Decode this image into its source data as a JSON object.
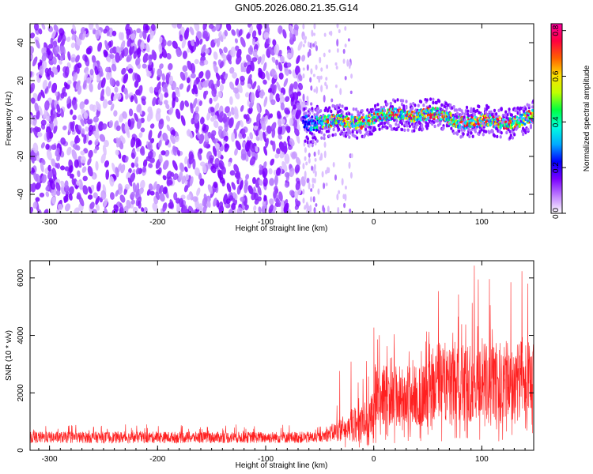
{
  "title": "GN05.2026.080.21.35.G14",
  "chart_data": [
    {
      "type": "heatmap",
      "title": "GN05.2026.080.21.35.G14",
      "xlabel": "Height of straight line (km)",
      "ylabel": "Frequency (Hz)",
      "xlim": [
        -318,
        148
      ],
      "ylim": [
        -50,
        50
      ],
      "xticks": [
        -300,
        -200,
        -100,
        0,
        100
      ],
      "yticks": [
        -40,
        -20,
        0,
        20,
        40
      ],
      "colorbar": {
        "label": "Normalized spectral amplitude",
        "range": [
          0.0,
          0.83
        ],
        "ticks": [
          0.0,
          0.2,
          0.4,
          0.6,
          0.8
        ],
        "colormap": [
          "#ffffff",
          "#c080ff",
          "#7a00ff",
          "#0000ff",
          "#00aaff",
          "#00ffe0",
          "#00ff40",
          "#c0ff00",
          "#ffe000",
          "#ff6000",
          "#ff0040",
          "#ff00a0"
        ]
      },
      "regions": [
        {
          "name": "noise",
          "x_range": [
            -318,
            -65
          ],
          "freq_range": [
            -50,
            50
          ],
          "amplitude": 0.05
        },
        {
          "name": "transition",
          "x_range": [
            -65,
            -20
          ],
          "freq_range": [
            -50,
            50
          ],
          "amplitude": 0.02
        },
        {
          "name": "signal",
          "x_range": [
            -65,
            148
          ],
          "center_freq": 0,
          "half_width": 5,
          "amplitude_peak": 0.75
        }
      ]
    },
    {
      "type": "line",
      "xlabel": "Height of straight line (km)",
      "ylabel": "SNR (10 * v/v)",
      "xlim": [
        -318,
        148
      ],
      "ylim": [
        0,
        6600
      ],
      "xticks": [
        -300,
        -200,
        -100,
        0,
        100
      ],
      "yticks": [
        0,
        2000,
        4000,
        6000
      ],
      "color": "#ff2020",
      "segments": [
        {
          "x_range": [
            -318,
            -50
          ],
          "typical": [
            250,
            650
          ],
          "max": 900
        },
        {
          "x_range": [
            -50,
            0
          ],
          "typical": [
            300,
            2000
          ],
          "max": 3300
        },
        {
          "x_range": [
            0,
            50
          ],
          "typical": [
            800,
            3000
          ],
          "max": 4500
        },
        {
          "x_range": [
            50,
            148
          ],
          "typical": [
            1000,
            3800
          ],
          "max": 6500
        }
      ]
    }
  ]
}
